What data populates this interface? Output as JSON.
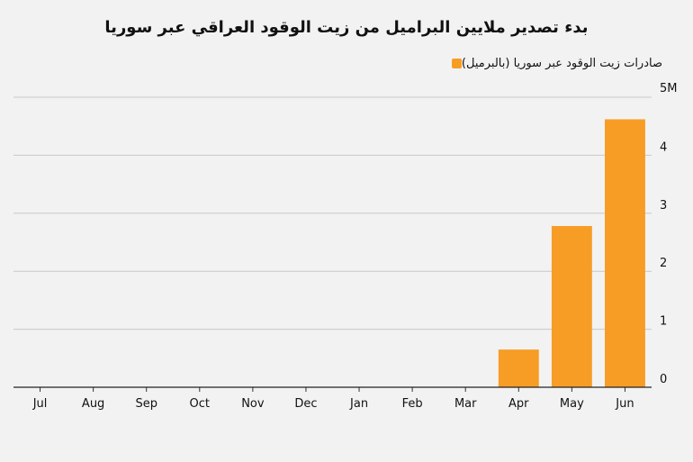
{
  "chart_data": {
    "type": "bar",
    "title": "بدء تصدير ملايين البراميل من زيت الوقود العراقي عبر سوريا",
    "categories": [
      "Jul",
      "Aug",
      "Sep",
      "Oct",
      "Nov",
      "Dec",
      "Jan",
      "Feb",
      "Mar",
      "Apr",
      "May",
      "Jun"
    ],
    "series": [
      {
        "name": "صادرات زيت الوقود عبر سوريا (بالبرميل)",
        "values": [
          0,
          0,
          0,
          0,
          0,
          0,
          0,
          0,
          0,
          0.65,
          2.78,
          4.62
        ],
        "color": "#f79d26"
      }
    ],
    "ylim": [
      0,
      5
    ],
    "yticks": [
      0,
      1,
      2,
      3,
      4,
      5
    ],
    "ytick_labels": [
      "0",
      "1",
      "2",
      "3",
      "4",
      "5M"
    ],
    "legend_position": "top-right",
    "grid": true,
    "xlabel": "",
    "ylabel": ""
  }
}
